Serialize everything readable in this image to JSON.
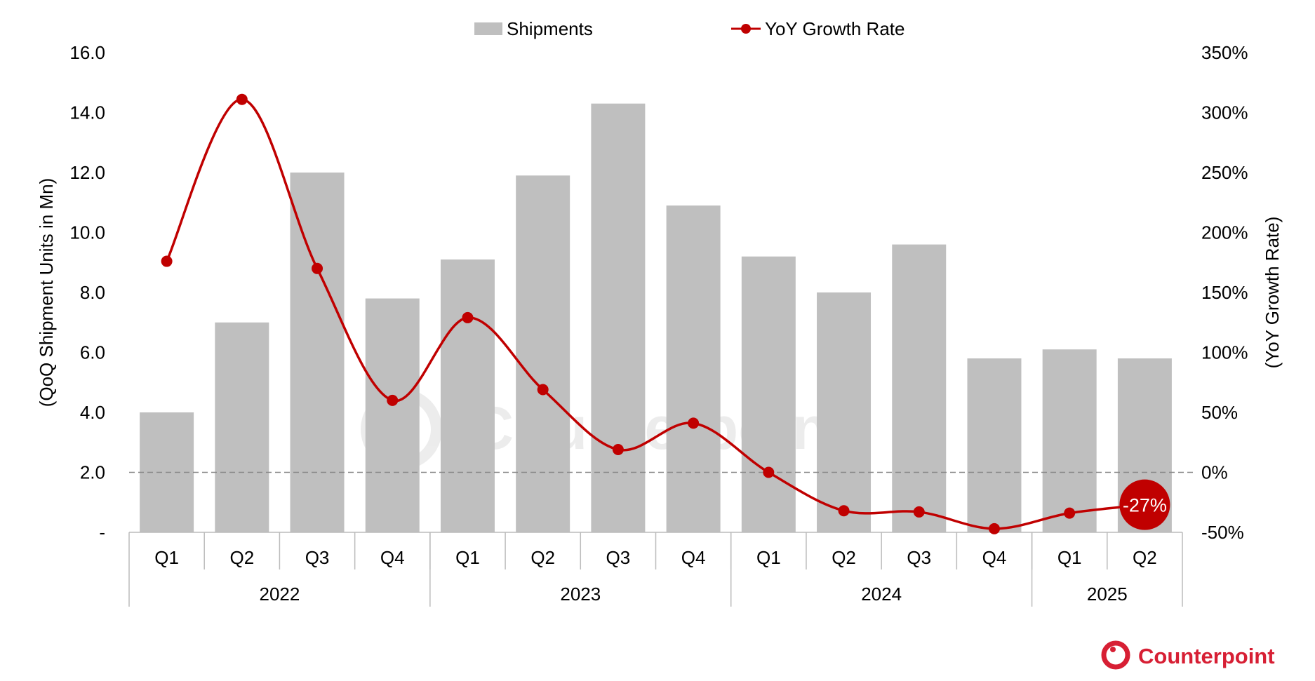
{
  "chart_data": {
    "type": "bar+line",
    "categories": [
      "Q1",
      "Q2",
      "Q3",
      "Q4",
      "Q1",
      "Q2",
      "Q3",
      "Q4",
      "Q1",
      "Q2",
      "Q3",
      "Q4",
      "Q1",
      "Q2"
    ],
    "groups": [
      {
        "label": "2022",
        "count": 4
      },
      {
        "label": "2023",
        "count": 4
      },
      {
        "label": "2024",
        "count": 4
      },
      {
        "label": "2025",
        "count": 2
      }
    ],
    "series": [
      {
        "name": "Shipments",
        "type": "bar",
        "axis": "left",
        "color": "#bfbfbf",
        "values": [
          4.0,
          7.0,
          12.0,
          7.8,
          9.1,
          11.9,
          14.3,
          10.9,
          9.2,
          8.0,
          9.6,
          5.8,
          6.1,
          5.8
        ]
      },
      {
        "name": "YoY Growth Rate",
        "type": "line",
        "axis": "right",
        "color": "#c00000",
        "smooth": true,
        "values": [
          176,
          311,
          170,
          60,
          129,
          69,
          19,
          41,
          0,
          -32,
          -33,
          -47,
          -34,
          -27
        ]
      }
    ],
    "ylabel": "(QoQ Shipment Units in Mn)",
    "ylabel_right": "(YoY Growth Rate)",
    "ylim": [
      0,
      16
    ],
    "ylim_right": [
      -50,
      350
    ],
    "yticks": [
      "-",
      "2.0",
      "4.0",
      "6.0",
      "8.0",
      "10.0",
      "12.0",
      "14.0",
      "16.0"
    ],
    "yticks_right": [
      "-50%",
      "0%",
      "50%",
      "100%",
      "150%",
      "200%",
      "250%",
      "300%",
      "350%"
    ],
    "reference_line": {
      "axis": "right",
      "value": 0,
      "style": "dashed"
    },
    "annotation": {
      "text": "-27%",
      "index": 13
    },
    "legend": {
      "placement": "top",
      "entries": [
        "Shipments",
        "YoY Growth Rate"
      ]
    },
    "grid": false
  },
  "branding": {
    "logo_text": "Counterpoint",
    "watermark": "Counterpoint",
    "color": "#d71f34"
  }
}
